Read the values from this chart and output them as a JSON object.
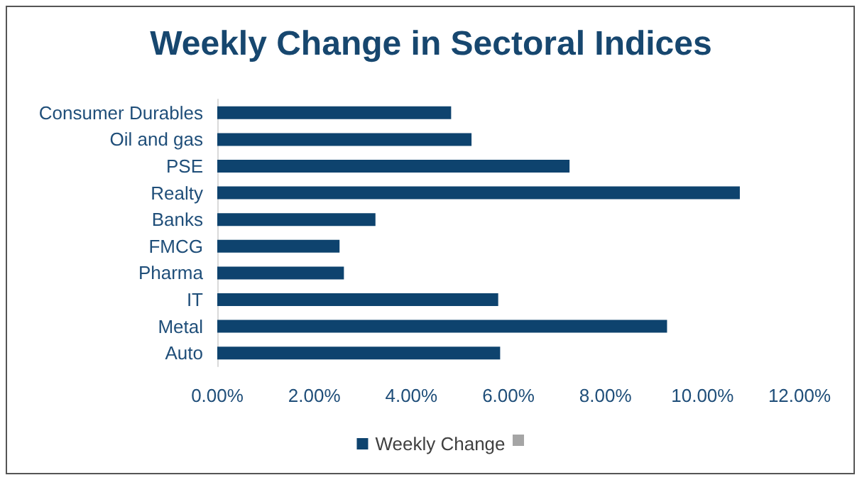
{
  "chart_data": {
    "type": "bar",
    "orientation": "horizontal",
    "title": "Weekly Change in Sectoral Indices",
    "categories": [
      "Consumer Durables",
      "Oil and gas",
      "PSE",
      "Realty",
      "Banks",
      "FMCG",
      "Pharma",
      "IT",
      "Metal",
      "Auto"
    ],
    "series": [
      {
        "name": "Weekly Change",
        "color": "#0e436e",
        "values": [
          4.82,
          5.24,
          7.26,
          10.77,
          3.26,
          2.52,
          2.61,
          5.79,
          9.27,
          5.83
        ]
      }
    ],
    "xlim": [
      0,
      12
    ],
    "xticks": [
      {
        "value": 0,
        "label": "0.00%"
      },
      {
        "value": 2,
        "label": "2.00%"
      },
      {
        "value": 4,
        "label": "4.00%"
      },
      {
        "value": 6,
        "label": "6.00%"
      },
      {
        "value": 8,
        "label": "8.00%"
      },
      {
        "value": 10,
        "label": "10.00%"
      },
      {
        "value": 12,
        "label": "12.00%"
      }
    ],
    "grid": false,
    "legend": "bottom"
  }
}
